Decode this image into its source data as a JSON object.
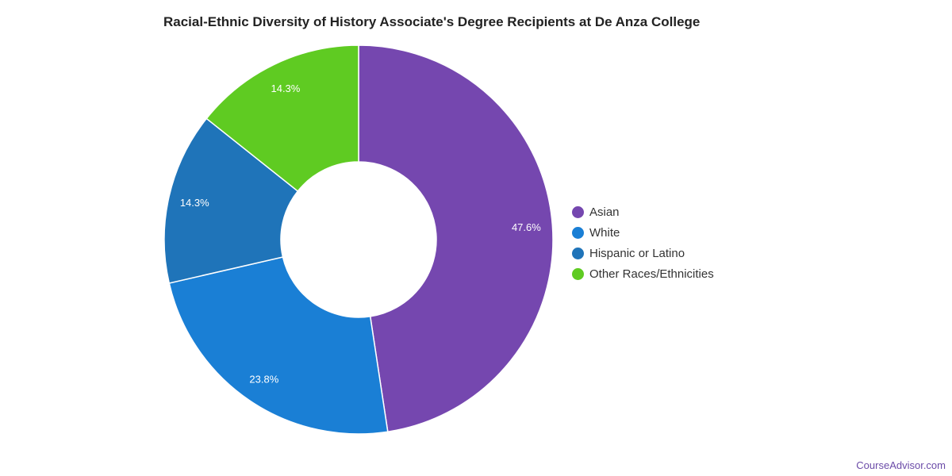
{
  "chart_data": {
    "type": "pie",
    "donut": true,
    "title": "Racial-Ethnic Diversity of History Associate's Degree Recipients at De Anza College",
    "categories": [
      "Asian",
      "White",
      "Hispanic or Latino",
      "Other Races/Ethnicities"
    ],
    "values": [
      47.6,
      23.8,
      14.3,
      14.3
    ],
    "labels": [
      "47.6%",
      "23.8%",
      "14.3%",
      "14.3%"
    ],
    "colors": [
      "#7547af",
      "#1a7fd5",
      "#1f74b9",
      "#5fcb22"
    ],
    "legend_position": "right"
  },
  "footer": "CourseAdvisor.com"
}
